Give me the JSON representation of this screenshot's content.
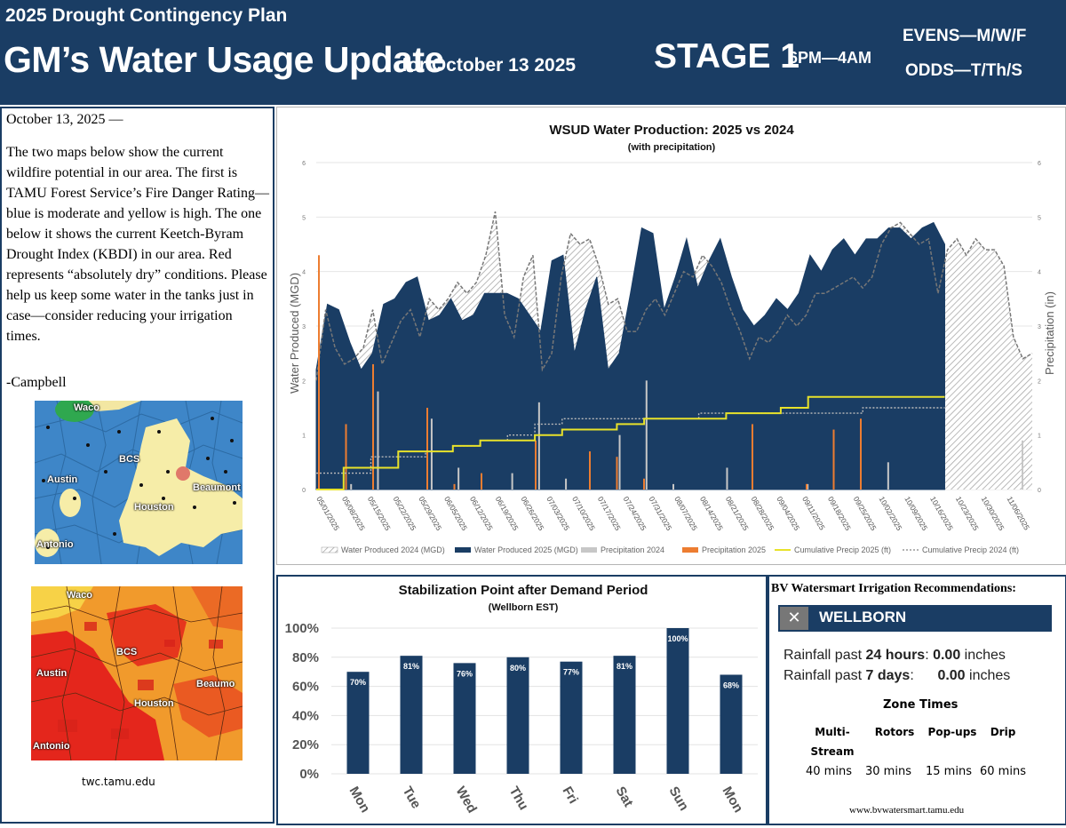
{
  "header": {
    "supertitle": "2025 Drought Contingency Plan",
    "title": "GM’s Water Usage Update",
    "title_date": "for October 13 2025",
    "stage": "STAGE 1",
    "hours": "6PM—4AM",
    "evens": "EVENS—M/W/F",
    "odds": "ODDS—T/Th/S",
    "bg_color": "#1a3d64"
  },
  "left_panel": {
    "date_line": "October 13, 2025 —",
    "body": "The two maps below show the current wildfire potential in our area. The first is TAMU Forest Service’s Fire Danger Rating—blue is moderate and yellow is high. The one below it shows the current Keetch-Byram Drought Index (KBDI) in our area. Red represents “absolutely dry” conditions. Please help us keep some water in the tanks just in case—consider reducing your irrigation times.",
    "signature": "-Campbell",
    "map1_labels": [
      "Waco",
      "BCS",
      "Austin",
      "Houston",
      "Beaumont",
      "Antonio"
    ],
    "map2_labels": [
      "Waco",
      "BCS",
      "Austin",
      "Houston",
      "Beaumo",
      "Antonio"
    ],
    "credit": "twc.tamu.edu"
  },
  "chart_data": [
    {
      "type": "area",
      "title": "WSUD Water Production: 2025 vs 2024",
      "subtitle": "(with precipitation)",
      "ylabel": "Water Produced (MGD)",
      "y2label": "Precipitation (in)",
      "ylim": [
        0,
        6
      ],
      "y2lim": [
        0,
        6
      ],
      "yticks": [
        "0",
        "1",
        "2",
        "3",
        "4",
        "5",
        "6"
      ],
      "x_labels": [
        "05/01/2025",
        "05/08/2025",
        "05/15/2025",
        "05/22/2025",
        "05/29/2025",
        "06/05/2025",
        "06/12/2025",
        "06/19/2025",
        "06/26/2025",
        "07/03/2025",
        "07/10/2025",
        "07/17/2025",
        "07/24/2025",
        "07/31/2025",
        "08/07/2025",
        "08/14/2025",
        "08/21/2025",
        "08/28/2025",
        "09/04/2025",
        "09/11/2025",
        "09/18/2025",
        "09/25/2025",
        "10/02/2025",
        "10/09/2025",
        "10/16/2025",
        "10/23/2025",
        "10/30/2025",
        "11/06/2025"
      ],
      "legend_position": "bottom",
      "series": [
        {
          "name": "Water Produced 2024 (MGD)",
          "color": "#a8a8a8",
          "values": [
            2.0,
            3.3,
            2.6,
            2.3,
            2.4,
            2.6,
            3.3,
            2.3,
            2.7,
            3.1,
            3.3,
            2.8,
            3.5,
            3.3,
            3.5,
            3.8,
            3.6,
            3.8,
            4.3,
            5.1,
            3.2,
            2.8,
            3.9,
            4.3,
            2.2,
            2.5,
            3.9,
            4.7,
            4.5,
            4.6,
            4.1,
            3.4,
            3.5,
            2.9,
            2.9,
            3.3,
            3.5,
            3.2,
            3.6,
            4.0,
            3.9,
            4.3,
            4.1,
            3.8,
            3.3,
            2.9,
            2.4,
            2.8,
            2.7,
            2.9,
            3.2,
            3.0,
            3.2,
            3.6,
            3.6,
            3.7,
            3.8,
            3.9,
            3.7,
            3.9,
            4.5,
            4.8,
            4.9,
            4.7,
            4.5,
            4.6,
            3.6,
            4.4,
            4.6,
            4.3,
            4.6,
            4.4,
            4.4,
            4.1,
            2.8,
            2.4,
            2.5
          ]
        },
        {
          "name": "Water Produced 2025 (MGD)",
          "color": "#1a3d64",
          "values": [
            2.2,
            3.4,
            3.3,
            2.7,
            2.2,
            2.5,
            3.4,
            3.5,
            3.8,
            3.9,
            3.1,
            3.2,
            3.5,
            3.1,
            3.2,
            3.6,
            3.6,
            3.6,
            3.5,
            3.2,
            2.9,
            4.2,
            4.3,
            2.5,
            3.3,
            3.9,
            2.2,
            2.5,
            3.6,
            4.8,
            4.7,
            3.3,
            3.9,
            4.6,
            3.7,
            4.2,
            4.6,
            3.9,
            3.3,
            3.0,
            3.2,
            3.5,
            3.3,
            3.6,
            4.3,
            4.0,
            4.4,
            4.6,
            4.3,
            4.6,
            4.6,
            4.8,
            4.8,
            4.6,
            4.8,
            4.9,
            4.5
          ]
        },
        {
          "name": "Precipitation 2024",
          "color": "#c7c7c7",
          "values": [
            0.0,
            0.1,
            1.8,
            0.0,
            1.3,
            0.4,
            0.0,
            0.3,
            1.6,
            0.2,
            0.0,
            1.0,
            2.0,
            0.1,
            0.0,
            0.4,
            0.0,
            0.0,
            0.1,
            0.0,
            0.0,
            0.5,
            0.0,
            0.0,
            0.0,
            0.0,
            0.9
          ]
        },
        {
          "name": "Precipitation 2025",
          "color": "#ed7d31",
          "values": [
            4.3,
            1.2,
            2.3,
            0.0,
            1.5,
            0.1,
            0.3,
            0.0,
            0.9,
            0.0,
            0.7,
            0.6,
            0.2,
            0.0,
            0.0,
            0.0,
            1.2,
            0.0,
            0.1,
            1.1,
            1.3,
            0.0,
            0.0,
            0.0
          ]
        },
        {
          "name": "Cumulative Precip 2025 (ft)",
          "color": "#e8e22a",
          "values": [
            0.0,
            0.4,
            0.4,
            0.7,
            0.7,
            0.8,
            0.9,
            0.9,
            1.0,
            1.1,
            1.1,
            1.2,
            1.3,
            1.3,
            1.3,
            1.4,
            1.4,
            1.5,
            1.7,
            1.7,
            1.7,
            1.7,
            1.7,
            1.7
          ]
        },
        {
          "name": "Cumulative Precip 2024 (ft)",
          "color": "#999999",
          "values": [
            0.3,
            0.3,
            0.6,
            0.6,
            0.7,
            0.8,
            0.9,
            1.0,
            1.2,
            1.3,
            1.3,
            1.3,
            1.3,
            1.3,
            1.4,
            1.4,
            1.4,
            1.4,
            1.4,
            1.4,
            1.5,
            1.5,
            1.5,
            1.5
          ]
        }
      ]
    },
    {
      "type": "bar",
      "title": "Stabilization Point after Demand Period",
      "subtitle": "(Wellborn EST)",
      "categories": [
        "Mon",
        "Tue",
        "Wed",
        "Thu",
        "Fri",
        "Sat",
        "Sun",
        "Mon"
      ],
      "values": [
        70,
        81,
        76,
        80,
        77,
        81,
        100,
        68
      ],
      "value_labels": [
        "70%",
        "81%",
        "76%",
        "80%",
        "77%",
        "81%",
        "100%",
        "68%"
      ],
      "yticks": [
        "0%",
        "20%",
        "40%",
        "60%",
        "80%",
        "100%"
      ],
      "ylim": [
        0,
        100
      ],
      "color": "#1a3d64"
    }
  ],
  "irrigation": {
    "heading": "BV Watersmart Irrigation Recommendations:",
    "close_icon": "✕",
    "station": "WELLBORN",
    "rain24_prefix": "Rainfall past ",
    "rain24_period": "24 hours",
    "rain24_value": "0.00",
    "rain7_prefix": "Rainfall past ",
    "rain7_period": "7 days",
    "rain7_value": "0.00",
    "unit": "inches",
    "zone_times_title": "Zone Times",
    "zones": [
      {
        "name": "Multi-Stream",
        "name1": "Multi-",
        "name2": "Stream",
        "time": "40 mins"
      },
      {
        "name": "Rotors",
        "name1": "Rotors",
        "name2": "",
        "time": "30 mins"
      },
      {
        "name": "Pop-ups",
        "name1": "Pop-ups",
        "name2": "",
        "time": "15 mins"
      },
      {
        "name": "Drip",
        "name1": "Drip",
        "name2": "",
        "time": "60 mins"
      }
    ],
    "url": "www.bvwatersmart.tamu.edu"
  }
}
